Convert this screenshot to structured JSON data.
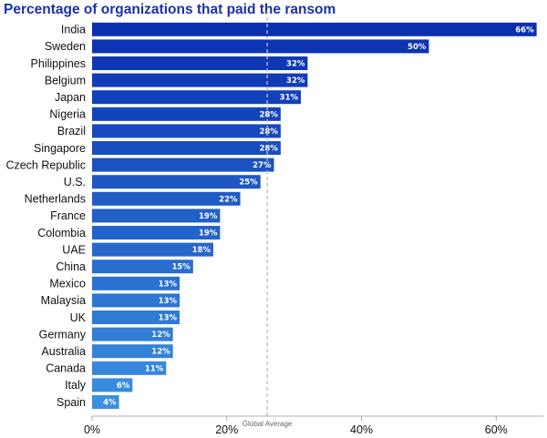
{
  "chart_data": {
    "type": "bar",
    "orientation": "horizontal",
    "title": "Percentage of organizations that paid the ransom",
    "xlabel": "",
    "ylabel": "",
    "categories": [
      "India",
      "Sweden",
      "Philippines",
      "Belgium",
      "Japan",
      "Nigeria",
      "Brazil",
      "Singapore",
      "Czech Republic",
      "U.S.",
      "Netherlands",
      "France",
      "Colombia",
      "UAE",
      "China",
      "Mexico",
      "Malaysia",
      "UK",
      "Germany",
      "Australia",
      "Canada",
      "Italy",
      "Spain"
    ],
    "values": [
      66,
      50,
      32,
      32,
      31,
      28,
      28,
      28,
      27,
      25,
      22,
      19,
      19,
      18,
      15,
      13,
      13,
      13,
      12,
      12,
      11,
      6,
      4
    ],
    "value_labels": [
      "66%",
      "50%",
      "32%",
      "32%",
      "31%",
      "28%",
      "28%",
      "28%",
      "27%",
      "25%",
      "22%",
      "19%",
      "19%",
      "18%",
      "15%",
      "13%",
      "13%",
      "13%",
      "12%",
      "12%",
      "11%",
      "6%",
      "4%"
    ],
    "xlim": [
      0,
      67
    ],
    "x_ticks": [
      0,
      20,
      40,
      60
    ],
    "x_tick_labels": [
      "0%",
      "20%",
      "40%",
      "60%"
    ],
    "reference_line": {
      "label": "Global Average",
      "value": 26,
      "style": "dashed"
    },
    "grid": false,
    "legend": "none",
    "colors": {
      "title": "#1a31a8",
      "bar_dark": "#0a2fb0",
      "bar_light": "#3a90e0",
      "reference_line": "#b9bcc4",
      "text": "#111111",
      "data_label": "#ffffff"
    }
  }
}
